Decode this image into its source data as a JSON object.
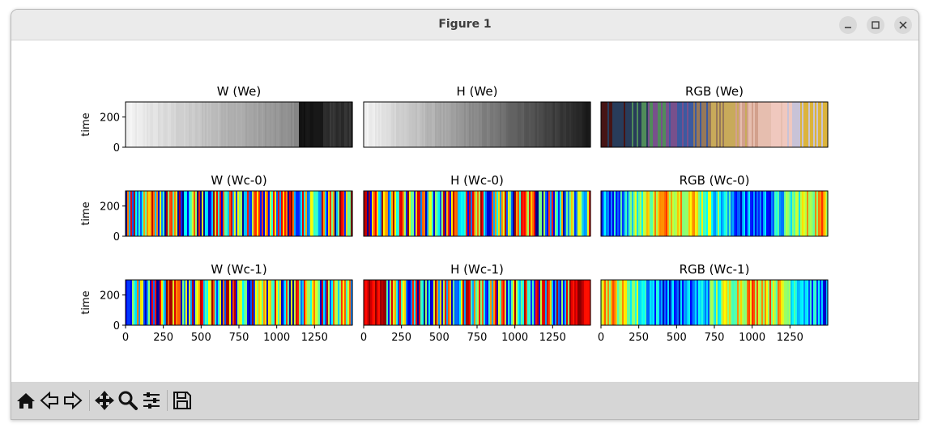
{
  "window": {
    "title": "Figure 1"
  },
  "controls": {
    "minimize": "minimize-icon",
    "maximize": "maximize-icon",
    "close": "close-icon"
  },
  "toolbar": {
    "tools": [
      "home-icon",
      "back-icon",
      "forward-icon",
      "pan-icon",
      "zoom-icon",
      "configure-icon",
      "save-icon"
    ]
  },
  "chart_data": [
    {
      "type": "heatmap",
      "title": "W (We)",
      "ylabel": "time",
      "xlim": [
        0,
        1500
      ],
      "ylim": [
        0,
        300
      ],
      "colormap": "gray",
      "yticks": [
        0,
        200
      ],
      "xticks": []
    },
    {
      "type": "heatmap",
      "title": "H (We)",
      "ylabel": "",
      "xlim": [
        0,
        1500
      ],
      "ylim": [
        0,
        300
      ],
      "colormap": "gray",
      "yticks": [],
      "xticks": []
    },
    {
      "type": "heatmap",
      "title": "RGB (We)",
      "ylabel": "",
      "xlim": [
        0,
        1500
      ],
      "ylim": [
        0,
        300
      ],
      "colormap": "rgb",
      "yticks": [],
      "xticks": []
    },
    {
      "type": "heatmap",
      "title": "W (Wc-0)",
      "ylabel": "time",
      "xlim": [
        0,
        1500
      ],
      "ylim": [
        0,
        300
      ],
      "colormap": "jet",
      "yticks": [
        0,
        200
      ],
      "xticks": []
    },
    {
      "type": "heatmap",
      "title": "H (Wc-0)",
      "ylabel": "",
      "xlim": [
        0,
        1500
      ],
      "ylim": [
        0,
        300
      ],
      "colormap": "jet",
      "yticks": [],
      "xticks": []
    },
    {
      "type": "heatmap",
      "title": "RGB (Wc-0)",
      "ylabel": "",
      "xlim": [
        0,
        1500
      ],
      "ylim": [
        0,
        300
      ],
      "colormap": "jet",
      "yticks": [],
      "xticks": []
    },
    {
      "type": "heatmap",
      "title": "W (Wc-1)",
      "ylabel": "time",
      "xlim": [
        0,
        1500
      ],
      "ylim": [
        0,
        300
      ],
      "colormap": "jet",
      "yticks": [
        0,
        200
      ],
      "xticks": [
        0,
        250,
        500,
        750,
        1000,
        1250
      ]
    },
    {
      "type": "heatmap",
      "title": "H (Wc-1)",
      "ylabel": "",
      "xlim": [
        0,
        1500
      ],
      "ylim": [
        0,
        300
      ],
      "colormap": "jet",
      "yticks": [],
      "xticks": [
        0,
        250,
        500,
        750,
        1000,
        1250
      ]
    },
    {
      "type": "heatmap",
      "title": "RGB (Wc-1)",
      "ylabel": "",
      "xlim": [
        0,
        1500
      ],
      "ylim": [
        0,
        300
      ],
      "colormap": "jet",
      "yticks": [],
      "xticks": [
        0,
        250,
        500,
        750,
        1000,
        1250
      ]
    }
  ]
}
